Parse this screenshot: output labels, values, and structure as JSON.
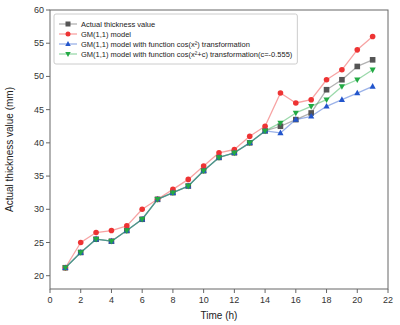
{
  "chart_data": {
    "type": "line",
    "xlabel": "Time (h)",
    "ylabel": "Actual thickness value (mm)",
    "x": [
      1,
      2,
      3,
      4,
      5,
      6,
      7,
      8,
      9,
      10,
      11,
      12,
      13,
      14,
      15,
      16,
      17,
      18,
      19,
      20,
      21
    ],
    "xlim": [
      0,
      22
    ],
    "ylim": [
      18,
      60
    ],
    "xticks": [
      0,
      2,
      4,
      6,
      8,
      10,
      12,
      14,
      16,
      18,
      20,
      22
    ],
    "yticks": [
      20,
      25,
      30,
      35,
      40,
      45,
      50,
      55,
      60
    ],
    "grid": false,
    "legend": "upper left",
    "series": [
      {
        "name": "Actual thickness value",
        "color": "#555555",
        "marker": "square",
        "values": [
          21.2,
          23.5,
          25.5,
          25.2,
          26.8,
          28.5,
          31.5,
          32.5,
          33.5,
          35.8,
          37.8,
          38.5,
          40.0,
          41.8,
          42.5,
          43.5,
          44.5,
          48.0,
          49.5,
          51.5,
          52.5
        ]
      },
      {
        "name": "GM(1,1) model",
        "color": "#ee3333",
        "marker": "circle",
        "values": [
          21.2,
          25.0,
          26.5,
          26.8,
          27.5,
          30.0,
          31.5,
          33.0,
          34.5,
          36.5,
          38.5,
          39.0,
          41.0,
          42.5,
          47.5,
          46.0,
          46.5,
          49.5,
          51.0,
          54.0,
          56.0
        ]
      },
      {
        "name": "GM(1,1) model with function cos(x²) transformation",
        "color": "#2255cc",
        "marker": "triangle-up",
        "values": [
          21.2,
          23.5,
          25.5,
          25.2,
          26.8,
          28.5,
          31.5,
          32.5,
          33.5,
          35.8,
          37.8,
          38.5,
          40.0,
          41.8,
          41.5,
          43.5,
          44.0,
          45.5,
          46.5,
          47.5,
          48.5
        ]
      },
      {
        "name": "GM(1,1) model with function cos(x²+c) transformation(c=-0.555)",
        "color": "#22aa44",
        "marker": "triangle-down",
        "values": [
          21.2,
          23.5,
          25.5,
          25.2,
          26.8,
          28.5,
          31.5,
          32.5,
          33.5,
          35.8,
          37.8,
          38.5,
          40.0,
          41.8,
          43.0,
          44.5,
          45.5,
          46.5,
          48.5,
          49.5,
          51.0
        ]
      }
    ]
  }
}
